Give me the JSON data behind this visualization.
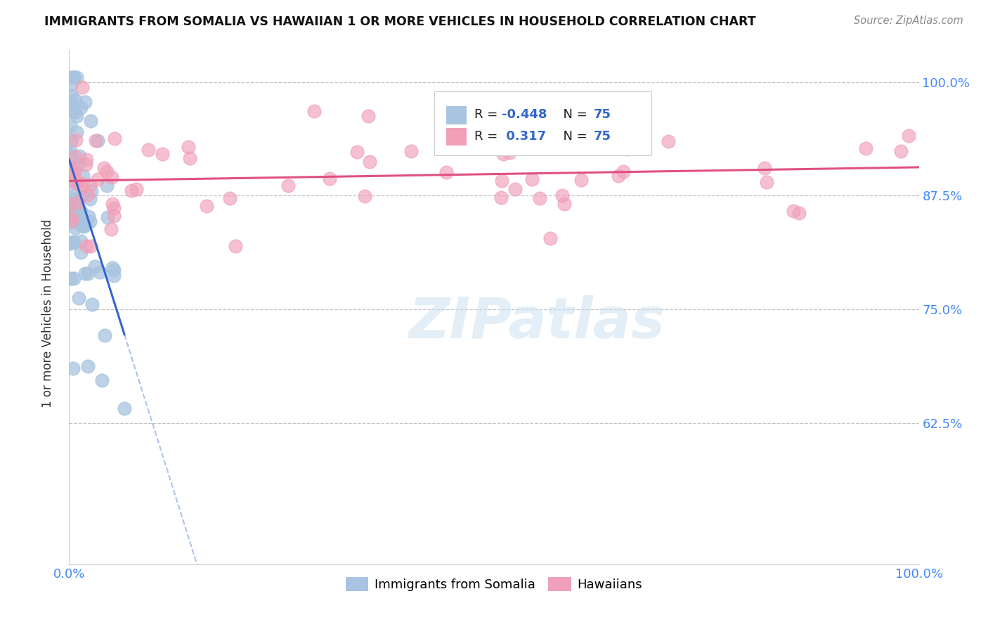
{
  "title": "IMMIGRANTS FROM SOMALIA VS HAWAIIAN 1 OR MORE VEHICLES IN HOUSEHOLD CORRELATION CHART",
  "source": "Source: ZipAtlas.com",
  "ylabel": "1 or more Vehicles in Household",
  "legend_r_blue": "-0.448",
  "legend_n_blue": "75",
  "legend_r_pink": "0.317",
  "legend_n_pink": "75",
  "blue_color": "#a8c4e0",
  "pink_color": "#f0a0b8",
  "trendline_blue_color": "#3366cc",
  "trendline_pink_color": "#e05080",
  "legend_label_blue": "Immigrants from Somalia",
  "legend_label_pink": "Hawaiians",
  "xlim": [
    0.0,
    1.0
  ],
  "ylim": [
    0.47,
    1.035
  ],
  "ytick_vals": [
    0.625,
    0.75,
    0.875,
    1.0
  ],
  "ytick_lbls": [
    "62.5%",
    "75.0%",
    "87.5%",
    "100.0%"
  ],
  "blue_scatter_seed": 42,
  "pink_scatter_seed": 99
}
